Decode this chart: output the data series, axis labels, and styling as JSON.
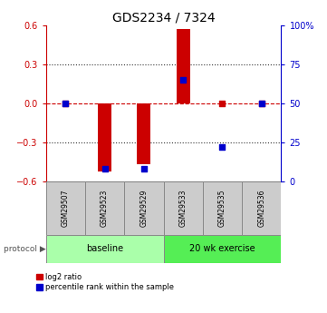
{
  "title": "GDS2234 / 7324",
  "samples": [
    "GSM29507",
    "GSM29523",
    "GSM29529",
    "GSM29533",
    "GSM29535",
    "GSM29536"
  ],
  "log2_ratio": [
    0.0,
    -0.52,
    -0.47,
    0.57,
    0.0,
    0.0
  ],
  "percentile_rank_pct": [
    50,
    8,
    8,
    65,
    22,
    50
  ],
  "ylim_left": [
    -0.6,
    0.6
  ],
  "ylim_right": [
    0,
    100
  ],
  "yticks_left": [
    -0.6,
    -0.3,
    0.0,
    0.3,
    0.6
  ],
  "yticks_right": [
    0,
    25,
    50,
    75,
    100
  ],
  "ytick_labels_right": [
    "0",
    "25",
    "50",
    "75",
    "100%"
  ],
  "protocol_groups": [
    {
      "label": "baseline",
      "color": "#aaffaa",
      "start": 0,
      "end": 3
    },
    {
      "label": "20 wk exercise",
      "color": "#55ee55",
      "start": 3,
      "end": 6
    }
  ],
  "bar_color": "#cc0000",
  "dot_color": "#0000cc",
  "bar_width": 0.35,
  "dot_size": 18,
  "hline_color": "#cc0000",
  "dotted_line_color": "#333333",
  "sample_box_color": "#cccccc",
  "title_fontsize": 10
}
